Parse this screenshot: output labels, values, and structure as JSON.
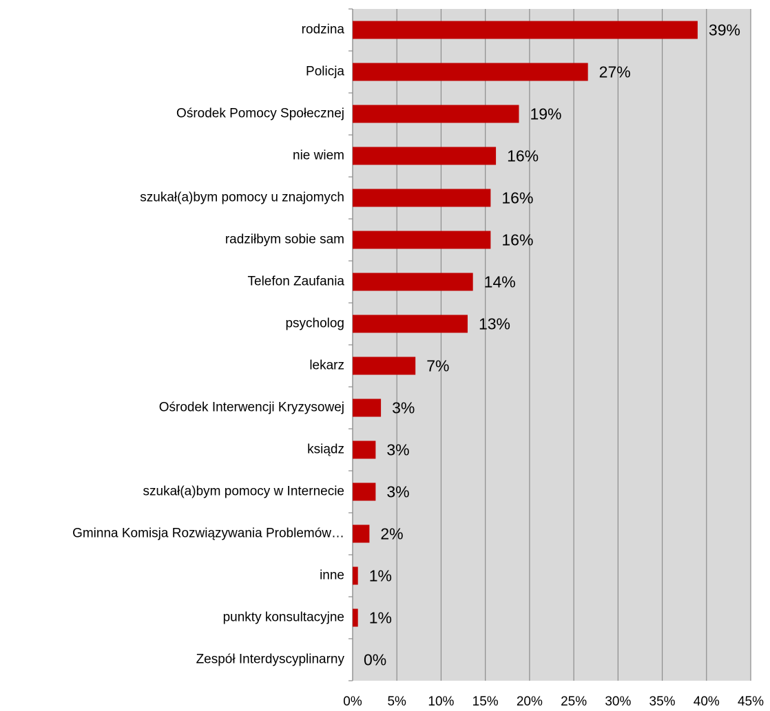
{
  "chart_data": {
    "type": "bar",
    "orientation": "horizontal",
    "categories": [
      "rodzina",
      "Policja",
      "Ośrodek Pomocy Społecznej",
      "nie wiem",
      "szukał(a)bym pomocy u znajomych",
      "radziłbym sobie sam",
      "Telefon Zaufania",
      "psycholog",
      "lekarz",
      "Ośrodek Interwencji Kryzysowej",
      "ksiądz",
      "szukał(a)bym pomocy w Internecie",
      "Gminna Komisja Rozwiązywania Problemów…",
      "inne",
      "punkty konsultacyjne",
      "Zespół Interdyscyplinarny"
    ],
    "values": [
      39.0,
      26.6,
      18.8,
      16.2,
      15.6,
      15.6,
      13.6,
      13.0,
      7.1,
      3.2,
      2.6,
      2.6,
      1.9,
      0.6,
      0.6,
      0
    ],
    "value_labels": [
      "39%",
      "27%",
      "19%",
      "16%",
      "16%",
      "16%",
      "14%",
      "13%",
      "7%",
      "3%",
      "3%",
      "3%",
      "2%",
      "1%",
      "1%",
      "0%"
    ],
    "color": "#c00000",
    "xlim": [
      0,
      45
    ],
    "xticks": [
      {
        "value": 0,
        "label": "0%"
      },
      {
        "value": 5,
        "label": "5%"
      },
      {
        "value": 10,
        "label": "10%"
      },
      {
        "value": 15,
        "label": "15%"
      },
      {
        "value": 20,
        "label": "20%"
      },
      {
        "value": 25,
        "label": "25%"
      },
      {
        "value": 30,
        "label": "30%"
      },
      {
        "value": 35,
        "label": "35%"
      },
      {
        "value": 40,
        "label": "40%"
      },
      {
        "value": 45,
        "label": "45%"
      }
    ],
    "grid": true
  }
}
